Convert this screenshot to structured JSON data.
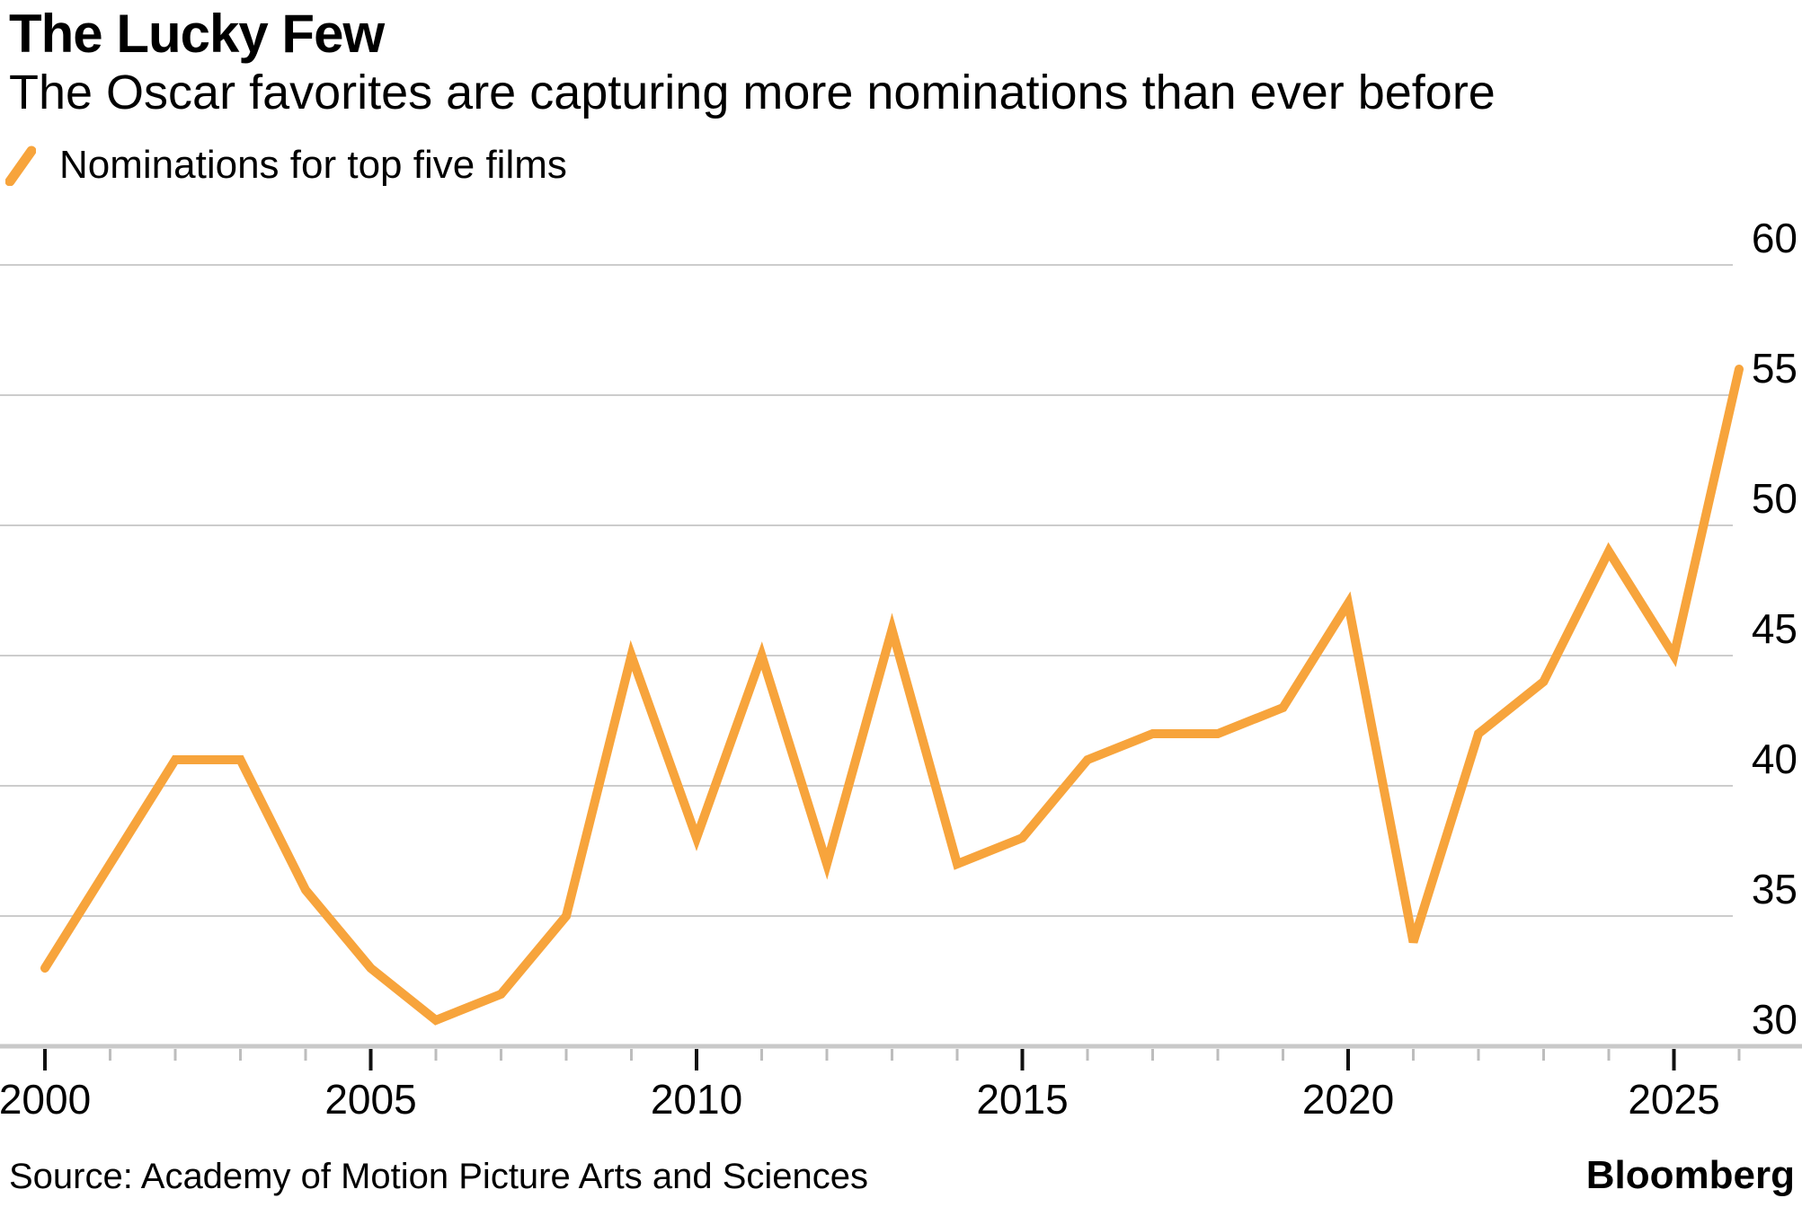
{
  "header": {
    "title": "The Lucky Few",
    "subtitle": "The Oscar favorites are capturing more nominations than ever before"
  },
  "legend": {
    "label": "Nominations for top five films"
  },
  "footer": {
    "source": "Source: Academy of Motion Picture Arts and Sciences",
    "brand": "Bloomberg"
  },
  "chart_data": {
    "type": "line",
    "title": "The Lucky Few",
    "subtitle": "The Oscar favorites are capturing more nominations than ever before",
    "legend_entries": [
      "Nominations for top five films"
    ],
    "legend_position": "top-left",
    "x": [
      2000,
      2001,
      2002,
      2003,
      2004,
      2005,
      2006,
      2007,
      2008,
      2009,
      2010,
      2011,
      2012,
      2013,
      2014,
      2015,
      2016,
      2017,
      2018,
      2019,
      2020,
      2021,
      2022,
      2023,
      2024,
      2025,
      2026
    ],
    "series": [
      {
        "name": "Nominations for top five films",
        "values": [
          33,
          37,
          41,
          41,
          36,
          33,
          31,
          32,
          35,
          45,
          38,
          45,
          37,
          46,
          37,
          38,
          41,
          42,
          42,
          43,
          47,
          34,
          42,
          44,
          49,
          45,
          56
        ]
      }
    ],
    "xlabel": "",
    "ylabel": "",
    "xlim": [
      2000,
      2026
    ],
    "ylim": [
      30,
      60
    ],
    "y_ticks": [
      30,
      35,
      40,
      45,
      50,
      55,
      60
    ],
    "x_major_ticks": [
      2000,
      2005,
      2010,
      2015,
      2020,
      2025
    ],
    "grid": "horizontal",
    "colors": {
      "line": "#F7A43C",
      "grid": "#cccccc",
      "axis": "#c9c9c9",
      "tick_major": "#111111",
      "tick_minor": "#bdbdbd",
      "text": "#000000"
    }
  }
}
